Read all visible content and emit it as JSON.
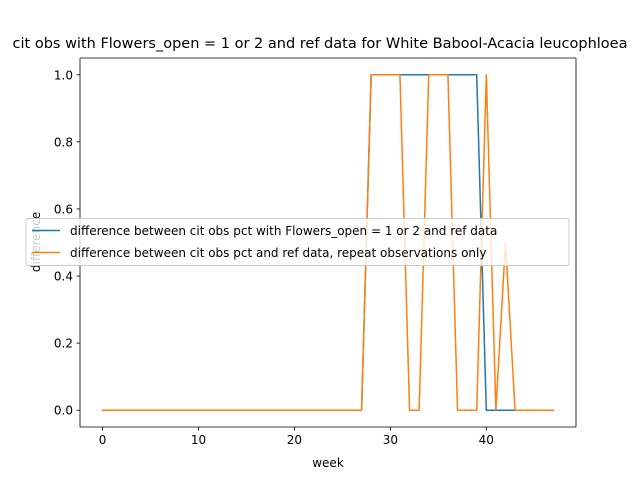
{
  "chart_data": {
    "type": "line",
    "title": "cit obs with Flowers_open = 1 or 2 and ref data for White Babool-Acacia leucophloea",
    "xlabel": "week",
    "ylabel": "difference",
    "xlim": [
      -2.35,
      49.35
    ],
    "ylim": [
      -0.05,
      1.05
    ],
    "xticks": [
      0,
      10,
      20,
      30,
      40
    ],
    "xtick_labels": [
      "0",
      "10",
      "20",
      "30",
      "40"
    ],
    "yticks": [
      0.0,
      0.2,
      0.4,
      0.6,
      0.8,
      1.0
    ],
    "ytick_labels": [
      "0.0",
      "0.2",
      "0.4",
      "0.6",
      "0.8",
      "1.0"
    ],
    "grid": false,
    "legend_position": "center-left",
    "x": [
      0,
      1,
      2,
      3,
      4,
      5,
      6,
      7,
      8,
      9,
      10,
      11,
      12,
      13,
      14,
      15,
      16,
      17,
      18,
      19,
      20,
      21,
      22,
      23,
      24,
      25,
      26,
      27,
      28,
      29,
      30,
      31,
      32,
      33,
      34,
      35,
      36,
      37,
      38,
      39,
      40,
      41,
      42,
      43,
      44,
      45,
      46,
      47
    ],
    "series": [
      {
        "name": "difference between cit obs pct with Flowers_open = 1 or 2 and ref data",
        "color": "#1f77b4",
        "values": [
          0,
          0,
          0,
          0,
          0,
          0,
          0,
          0,
          0,
          0,
          0,
          0,
          0,
          0,
          0,
          0,
          0,
          0,
          0,
          0,
          0,
          0,
          0,
          0,
          0,
          0,
          0,
          0,
          1,
          1,
          1,
          1,
          1,
          1,
          1,
          1,
          1,
          1,
          1,
          1,
          0,
          0,
          0,
          0,
          0,
          0,
          0,
          0
        ]
      },
      {
        "name": "difference between cit obs pct and ref data, repeat observations only",
        "color": "#ff7f0e",
        "values": [
          0,
          0,
          0,
          0,
          0,
          0,
          0,
          0,
          0,
          0,
          0,
          0,
          0,
          0,
          0,
          0,
          0,
          0,
          0,
          0,
          0,
          0,
          0,
          0,
          0,
          0,
          0,
          0,
          1,
          1,
          1,
          1,
          0,
          0,
          1,
          1,
          1,
          0,
          0,
          0,
          1,
          0,
          0.5,
          0,
          0,
          0,
          0,
          0
        ]
      }
    ]
  }
}
